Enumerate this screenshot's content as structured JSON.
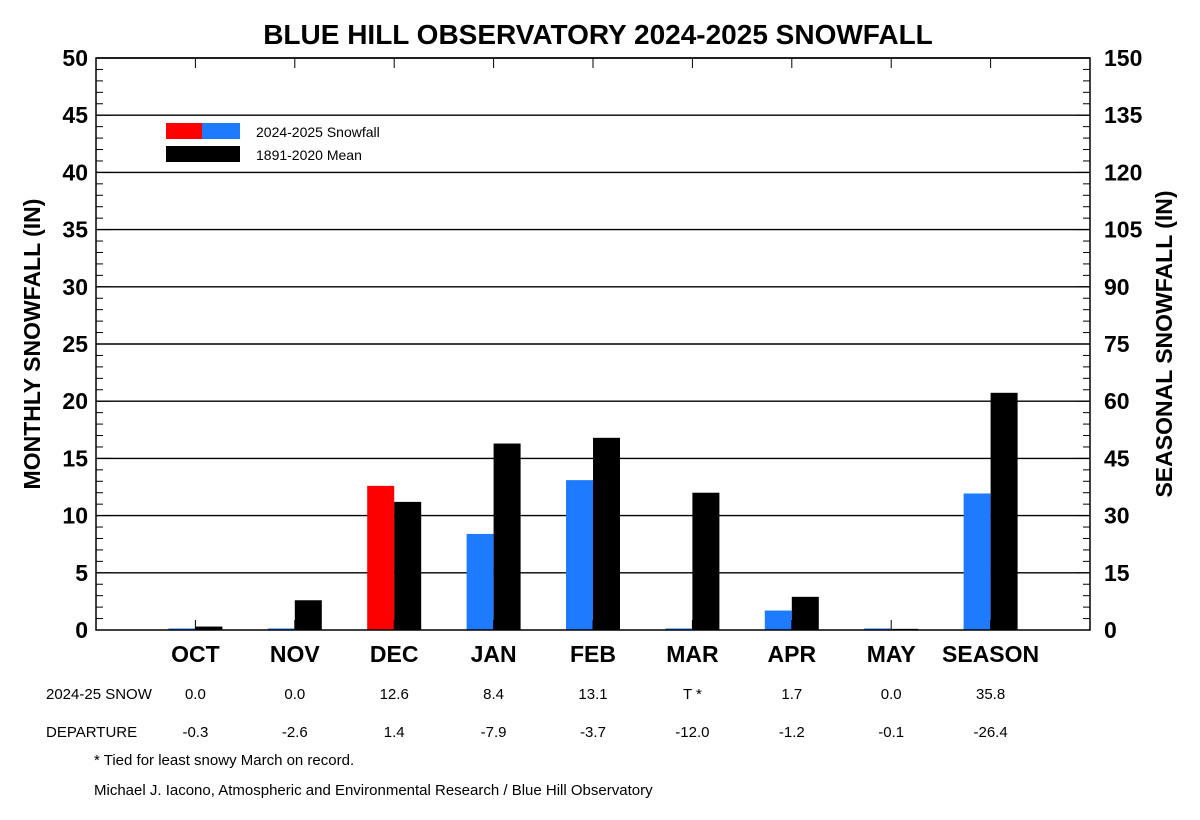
{
  "chart_data": {
    "type": "bar",
    "title": "BLUE HILL OBSERVATORY 2024-2025 SNOWFALL",
    "ylabel": "MONTHLY SNOWFALL (IN)",
    "y2label": "SEASONAL SNOWFALL (IN)",
    "ylim": [
      0,
      50
    ],
    "y2lim": [
      0,
      150
    ],
    "yticks": [
      "0",
      "5",
      "10",
      "15",
      "20",
      "25",
      "30",
      "35",
      "40",
      "45",
      "50"
    ],
    "y2ticks": [
      "0",
      "15",
      "30",
      "45",
      "60",
      "75",
      "90",
      "105",
      "120",
      "135",
      "150"
    ],
    "categories": [
      "OCT",
      "NOV",
      "DEC",
      "JAN",
      "FEB",
      "MAR",
      "APR",
      "MAY",
      "SEASON"
    ],
    "series": [
      {
        "name": "2024-2025 Snowfall",
        "values": [
          0.0,
          0.0,
          12.6,
          8.4,
          13.1,
          0.0,
          1.7,
          0.0,
          35.8
        ],
        "colors": [
          "#1e7bff",
          "#1e7bff",
          "#ff0000",
          "#1e7bff",
          "#1e7bff",
          "#1e7bff",
          "#1e7bff",
          "#1e7bff",
          "#1e7bff"
        ]
      },
      {
        "name": "1891-2020 Mean",
        "values": [
          0.3,
          2.6,
          11.2,
          16.3,
          16.8,
          12.0,
          2.9,
          0.1,
          62.2
        ],
        "colors": [
          "#000000",
          "#000000",
          "#000000",
          "#000000",
          "#000000",
          "#000000",
          "#000000",
          "#000000",
          "#000000"
        ]
      }
    ],
    "grid": true,
    "legend_position": "top-left"
  },
  "table": {
    "rows": [
      {
        "label": "2024-25 SNOW",
        "values": [
          "0.0",
          "0.0",
          "12.6",
          "8.4",
          "13.1",
          "T  *",
          "1.7",
          "0.0",
          "35.8"
        ]
      },
      {
        "label": "DEPARTURE",
        "values": [
          "-0.3",
          "-2.6",
          "1.4",
          "-7.9",
          "-3.7",
          "-12.0",
          "-1.2",
          "-0.1",
          "-26.4"
        ]
      }
    ]
  },
  "footnote": "* Tied for least snowy March on record.",
  "credit": "Michael J. Iacono, Atmospheric and Environmental Research / Blue Hill Observatory",
  "colors": {
    "warm_accent": "#ff0000",
    "snow_blue": "#1e7bff",
    "mean_black": "#000000"
  }
}
